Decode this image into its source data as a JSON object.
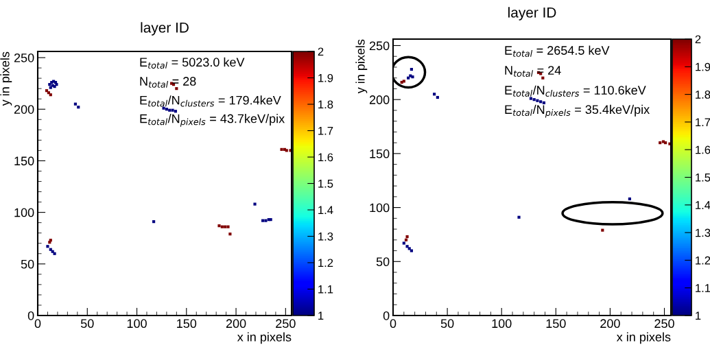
{
  "chart_data": [
    {
      "type": "scatter",
      "title": "layer ID",
      "xlabel": "x in pixels",
      "ylabel": "y in pixels",
      "marker": "square",
      "grid": false,
      "legend": false,
      "annotations": [
        "E$_{total}$ = 5023.0 keV",
        "N$_{total}$ = 28",
        "E$_{total}$/N$_{clusters}$ = 179.4keV",
        "E$_{total}$/N$_{pixels}$ = 43.7keV/pix"
      ],
      "x": [
        12,
        14,
        16,
        18,
        15,
        17,
        13,
        19,
        9,
        11,
        13,
        38,
        41,
        135,
        137,
        140,
        127,
        130,
        133,
        136,
        139,
        246,
        249,
        251,
        255,
        117,
        219,
        227,
        230,
        233,
        235,
        183,
        186,
        189,
        192,
        194,
        12,
        13,
        10,
        13,
        15,
        17
      ],
      "values": [
        224,
        226,
        227,
        226,
        223,
        222,
        221,
        224,
        218,
        216,
        214,
        205,
        202,
        225,
        224,
        220,
        201,
        200,
        199,
        199,
        198,
        161,
        161,
        160,
        160,
        91,
        108,
        92,
        92,
        93,
        93,
        87,
        86,
        86,
        86,
        79,
        71,
        73,
        67,
        64,
        62,
        60
      ],
      "cvalues": [
        1,
        1,
        1,
        1,
        1,
        1,
        1,
        1,
        2,
        2,
        2,
        1,
        1,
        2,
        2,
        2,
        1,
        1,
        1,
        1,
        1,
        2,
        2,
        2,
        2,
        1,
        1,
        1,
        1,
        1,
        1,
        2,
        2,
        2,
        2,
        2,
        2,
        2,
        1,
        1,
        1,
        1
      ],
      "xlim": [
        0,
        256
      ],
      "ylim": [
        0,
        256
      ],
      "xticks": [
        0,
        50,
        100,
        150,
        200,
        250
      ],
      "yticks": [
        0,
        50,
        100,
        150,
        200,
        250
      ],
      "clim": [
        1,
        2
      ],
      "cticks": [
        1,
        1.1,
        1.2,
        1.3,
        1.4,
        1.5,
        1.6,
        1.7,
        1.8,
        1.9,
        2
      ]
    },
    {
      "type": "scatter",
      "title": "layer ID",
      "xlabel": "x in pixels",
      "ylabel": "y in pixels",
      "marker": "square",
      "grid": false,
      "legend": false,
      "annotations": [
        "E$_{total}$ = 2654.5 keV",
        "N$_{total}$ = 24",
        "E$_{total}$/N$_{clusters}$ = 110.6keV",
        "E$_{total}$/N$_{pixels}$ = 35.4keV/pix"
      ],
      "x": [
        14,
        16,
        18,
        17,
        8,
        10,
        38,
        41,
        134,
        136,
        138,
        127,
        130,
        133,
        136,
        139,
        246,
        249,
        251,
        255,
        116,
        218,
        193,
        12,
        13,
        10,
        13,
        15,
        17
      ],
      "values": [
        220,
        222,
        221,
        228,
        216,
        217,
        205,
        202,
        225,
        224,
        220,
        201,
        200,
        199,
        198,
        197,
        160,
        161,
        160,
        159,
        91,
        108,
        79,
        70,
        73,
        67,
        64,
        62,
        60
      ],
      "cvalues": [
        1,
        1,
        1,
        1,
        2,
        2,
        1,
        1,
        2,
        2,
        2,
        1,
        1,
        1,
        1,
        1,
        2,
        2,
        2,
        2,
        1,
        1,
        2,
        2,
        2,
        1,
        1,
        1,
        1
      ],
      "xlim": [
        0,
        256
      ],
      "ylim": [
        0,
        256
      ],
      "xticks": [
        0,
        50,
        100,
        150,
        200,
        250
      ],
      "yticks": [
        0,
        50,
        100,
        150,
        200,
        250
      ],
      "clim": [
        1,
        2
      ],
      "cticks": [
        1,
        1.1,
        1.2,
        1.3,
        1.4,
        1.5,
        1.6,
        1.7,
        1.8,
        1.9,
        2
      ]
    }
  ]
}
